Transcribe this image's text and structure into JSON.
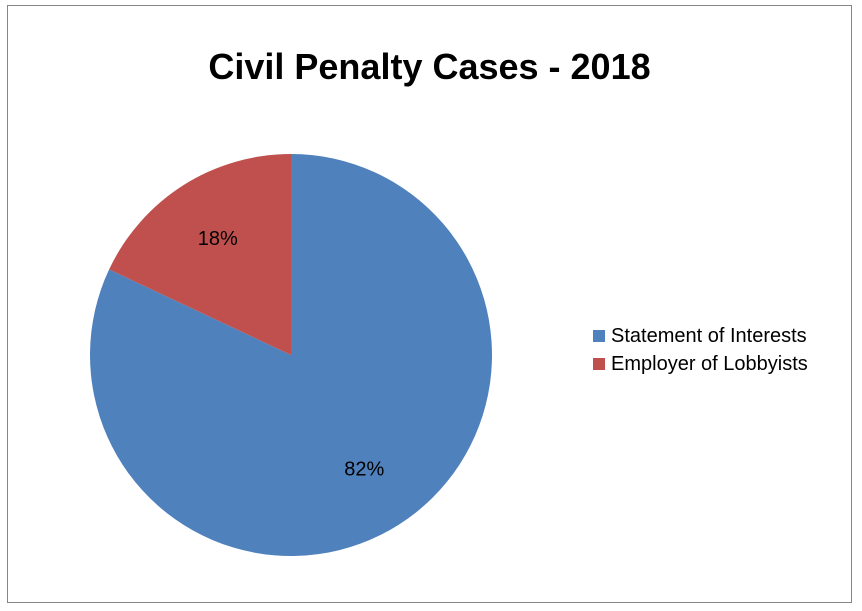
{
  "chart_data": {
    "type": "pie",
    "title": "Civil Penalty Cases - 2018",
    "categories": [
      "Statement of Interests",
      "Employer of Lobbyists"
    ],
    "values": [
      82,
      18
    ],
    "data_labels": [
      "82%",
      "18%"
    ],
    "colors": [
      "#4F81BD",
      "#C0504D"
    ],
    "legend_position": "right"
  }
}
